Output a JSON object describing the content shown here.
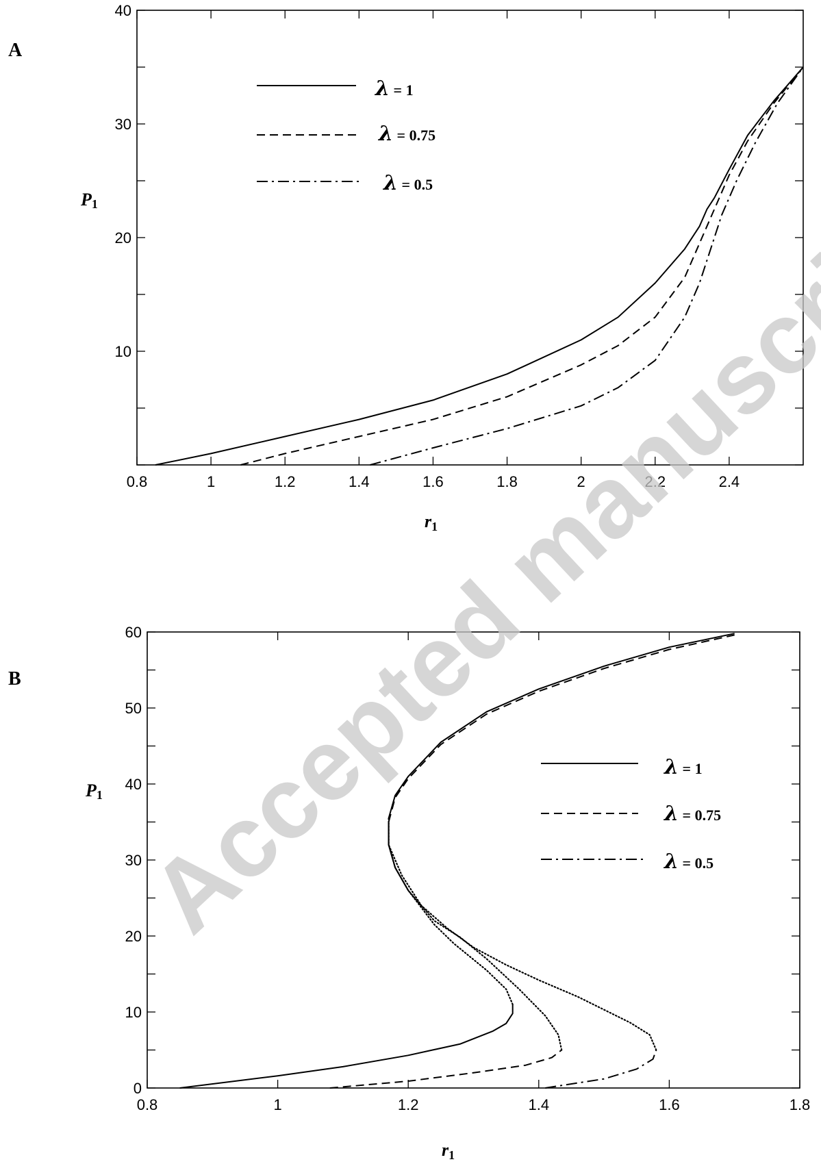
{
  "watermark": "Accepted manuscript",
  "chart_data": [
    {
      "type": "line",
      "panel_label": "A",
      "xlabel": "r",
      "xlabel_sub": "1",
      "ylabel": "P",
      "ylabel_sub": "1",
      "xlim": [
        0.8,
        2.6
      ],
      "ylim": [
        0,
        40
      ],
      "xticks": [
        "0.8",
        "1",
        "1.2",
        "1.4",
        "1.6",
        "1.8",
        "2",
        "2.2",
        "2.4"
      ],
      "yticks": [
        "10",
        "20",
        "30",
        "40"
      ],
      "legend_position": "top-left",
      "grid": false,
      "series": [
        {
          "name": "λ = 1",
          "lam": "λ",
          "label_rest": " = 1",
          "style": "solid",
          "points": [
            [
              0.85,
              0.0
            ],
            [
              1.0,
              1.0
            ],
            [
              1.2,
              2.5
            ],
            [
              1.4,
              4.0
            ],
            [
              1.6,
              5.7
            ],
            [
              1.8,
              8.0
            ],
            [
              2.0,
              11.0
            ],
            [
              2.1,
              13.0
            ],
            [
              2.2,
              16.0
            ],
            [
              2.28,
              19.0
            ],
            [
              2.32,
              21.0
            ],
            [
              2.34,
              22.5
            ],
            [
              2.36,
              23.5
            ],
            [
              2.4,
              26.0
            ],
            [
              2.45,
              29.0
            ],
            [
              2.52,
              32.0
            ],
            [
              2.6,
              35.0
            ]
          ]
        },
        {
          "name": "λ = 0.75",
          "lam": "λ",
          "label_rest": " = 0.75",
          "style": "dashed",
          "points": [
            [
              1.08,
              0.0
            ],
            [
              1.2,
              1.0
            ],
            [
              1.4,
              2.5
            ],
            [
              1.6,
              4.0
            ],
            [
              1.8,
              6.0
            ],
            [
              2.0,
              8.8
            ],
            [
              2.1,
              10.5
            ],
            [
              2.2,
              13.0
            ],
            [
              2.28,
              16.5
            ],
            [
              2.32,
              19.5
            ],
            [
              2.36,
              22.5
            ],
            [
              2.4,
              25.5
            ],
            [
              2.45,
              28.5
            ],
            [
              2.52,
              31.8
            ],
            [
              2.6,
              35.0
            ]
          ]
        },
        {
          "name": "λ = 0.5",
          "lam": "λ",
          "label_rest": " = 0.5",
          "style": "dashdot",
          "points": [
            [
              1.43,
              0.0
            ],
            [
              1.6,
              1.5
            ],
            [
              1.8,
              3.2
            ],
            [
              2.0,
              5.2
            ],
            [
              2.1,
              6.8
            ],
            [
              2.2,
              9.2
            ],
            [
              2.28,
              13.0
            ],
            [
              2.32,
              16.0
            ],
            [
              2.35,
              19.0
            ],
            [
              2.38,
              22.0
            ],
            [
              2.42,
              25.0
            ],
            [
              2.47,
              28.3
            ],
            [
              2.53,
              31.8
            ],
            [
              2.6,
              35.0
            ]
          ]
        }
      ]
    },
    {
      "type": "line",
      "panel_label": "B",
      "xlabel": "r",
      "xlabel_sub": "1",
      "ylabel": "P",
      "ylabel_sub": "1",
      "xlim": [
        0.8,
        1.8
      ],
      "ylim": [
        0,
        60
      ],
      "xticks": [
        "0.8",
        "1",
        "1.2",
        "1.4",
        "1.6",
        "1.8"
      ],
      "yticks": [
        "0",
        "10",
        "20",
        "30",
        "40",
        "50",
        "60"
      ],
      "legend_position": "center-right",
      "grid": false,
      "series": [
        {
          "name": "λ = 1",
          "lam": "λ",
          "label_rest": " = 1",
          "style": "solid",
          "points": [
            [
              0.85,
              0.0
            ],
            [
              1.0,
              1.6
            ],
            [
              1.1,
              2.8
            ],
            [
              1.2,
              4.3
            ],
            [
              1.28,
              5.8
            ],
            [
              1.33,
              7.5
            ],
            [
              1.35,
              8.5
            ],
            [
              1.36,
              9.8
            ],
            [
              1.36,
              11.0
            ]
          ]
        },
        {
          "name": "λ = 0.75",
          "lam": "λ",
          "label_rest": " = 0.75",
          "style": "dashed",
          "points": [
            [
              1.08,
              0.0
            ],
            [
              1.2,
              0.9
            ],
            [
              1.3,
              2.0
            ],
            [
              1.38,
              3.0
            ],
            [
              1.42,
              4.0
            ],
            [
              1.435,
              5.0
            ]
          ]
        },
        {
          "name": "λ = 0.5",
          "lam": "λ",
          "label_rest": " = 0.5",
          "style": "dashdot",
          "points": [
            [
              1.41,
              0.0
            ],
            [
              1.5,
              1.2
            ],
            [
              1.55,
              2.5
            ],
            [
              1.575,
              3.8
            ],
            [
              1.58,
              5.0
            ]
          ]
        }
      ],
      "unstable_branches": [
        {
          "style": "dotted",
          "points": [
            [
              1.36,
              11.0
            ],
            [
              1.35,
              13.0
            ],
            [
              1.32,
              15.5
            ],
            [
              1.27,
              19.0
            ],
            [
              1.24,
              21.5
            ],
            [
              1.2,
              26.0
            ],
            [
              1.18,
              29.0
            ],
            [
              1.17,
              32.0
            ],
            [
              1.17,
              35.5
            ]
          ]
        },
        {
          "style": "dotted",
          "points": [
            [
              1.435,
              5.0
            ],
            [
              1.43,
              7.0
            ],
            [
              1.41,
              9.5
            ],
            [
              1.37,
              13.0
            ],
            [
              1.32,
              17.0
            ],
            [
              1.28,
              19.8
            ],
            [
              1.24,
              22.0
            ],
            [
              1.2,
              26.0
            ],
            [
              1.18,
              29.0
            ],
            [
              1.17,
              32.0
            ],
            [
              1.17,
              35.0
            ]
          ]
        },
        {
          "style": "dotted",
          "points": [
            [
              1.58,
              5.0
            ],
            [
              1.57,
              7.0
            ],
            [
              1.54,
              8.6
            ],
            [
              1.46,
              12.0
            ],
            [
              1.4,
              14.2
            ],
            [
              1.35,
              16.2
            ],
            [
              1.3,
              18.5
            ],
            [
              1.26,
              21.0
            ],
            [
              1.22,
              24.0
            ],
            [
              1.19,
              28.0
            ],
            [
              1.17,
              32.0
            ],
            [
              1.17,
              35.0
            ]
          ]
        }
      ],
      "upper_branch": {
        "style": "solid",
        "points": [
          [
            1.17,
            35.5
          ],
          [
            1.18,
            38.5
          ],
          [
            1.2,
            41.0
          ],
          [
            1.25,
            45.5
          ],
          [
            1.32,
            49.5
          ],
          [
            1.4,
            52.5
          ],
          [
            1.5,
            55.5
          ],
          [
            1.6,
            58.0
          ],
          [
            1.7,
            59.8
          ]
        ]
      },
      "upper_branch_dashed": {
        "style": "dashed",
        "points": [
          [
            1.17,
            35.0
          ],
          [
            1.18,
            38.2
          ],
          [
            1.2,
            40.7
          ],
          [
            1.25,
            45.2
          ],
          [
            1.32,
            49.2
          ],
          [
            1.4,
            52.2
          ],
          [
            1.5,
            55.2
          ],
          [
            1.6,
            57.7
          ],
          [
            1.7,
            59.6
          ]
        ]
      }
    }
  ]
}
